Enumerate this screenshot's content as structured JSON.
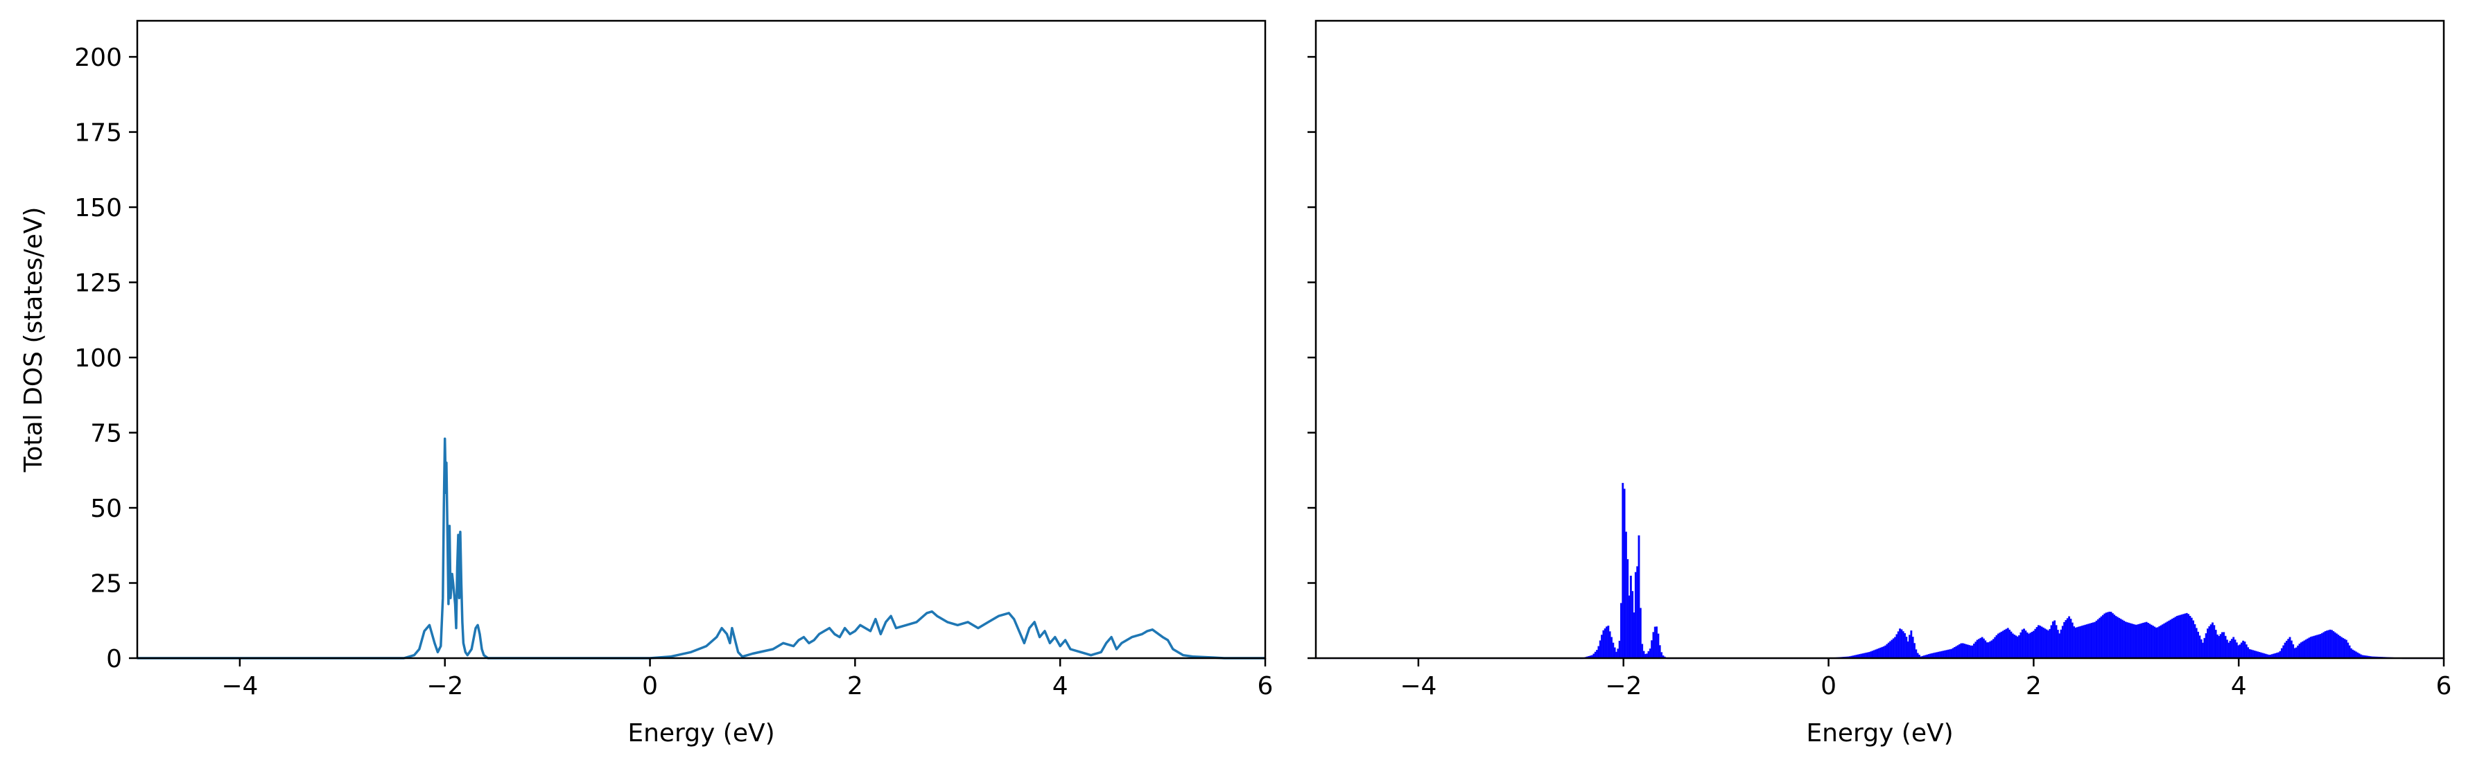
{
  "chart_data": [
    {
      "type": "line",
      "panel": "left",
      "xlabel": "Energy (eV)",
      "ylabel": "Total DOS (states/eV)",
      "xlim": [
        -5,
        6
      ],
      "ylim": [
        0,
        212
      ],
      "xticks": [
        -4,
        -2,
        0,
        2,
        4,
        6
      ],
      "xtick_labels": [
        "−4",
        "−2",
        "0",
        "2",
        "4",
        "6"
      ],
      "yticks": [
        0,
        25,
        50,
        75,
        100,
        125,
        150,
        175,
        200
      ],
      "ytick_labels": [
        "0",
        "25",
        "50",
        "75",
        "100",
        "125",
        "150",
        "175",
        "200"
      ],
      "grid": false,
      "color": "#1f77b4",
      "series": [
        {
          "x": [
            -5.0,
            -2.4,
            -2.3,
            -2.25,
            -2.2,
            -2.15,
            -2.1,
            -2.07,
            -2.04,
            -2.02,
            -2.01,
            -2.0,
            -1.99,
            -1.985,
            -1.975,
            -1.965,
            -1.955,
            -1.945,
            -1.93,
            -1.92,
            -1.9,
            -1.89,
            -1.88,
            -1.87,
            -1.86,
            -1.85,
            -1.84,
            -1.83,
            -1.82,
            -1.8,
            -1.78,
            -1.74,
            -1.7,
            -1.68,
            -1.66,
            -1.64,
            -1.62,
            -1.58,
            -1.5,
            0.0,
            0.2,
            0.4,
            0.55,
            0.65,
            0.7,
            0.75,
            0.78,
            0.8,
            0.83,
            0.86,
            0.9,
            1.0,
            1.2,
            1.3,
            1.4,
            1.45,
            1.5,
            1.55,
            1.6,
            1.65,
            1.7,
            1.75,
            1.8,
            1.85,
            1.9,
            1.95,
            2.0,
            2.05,
            2.1,
            2.15,
            2.2,
            2.25,
            2.3,
            2.35,
            2.4,
            2.5,
            2.6,
            2.7,
            2.75,
            2.8,
            2.9,
            3.0,
            3.1,
            3.2,
            3.3,
            3.4,
            3.5,
            3.55,
            3.6,
            3.65,
            3.7,
            3.75,
            3.8,
            3.85,
            3.9,
            3.95,
            4.0,
            4.05,
            4.1,
            4.2,
            4.3,
            4.4,
            4.45,
            4.5,
            4.55,
            4.6,
            4.7,
            4.8,
            4.85,
            4.9,
            5.0,
            5.05,
            5.1,
            5.2,
            5.3,
            5.5,
            5.6,
            6.0
          ],
          "y": [
            0.0,
            0.0,
            1.0,
            3.0,
            9.0,
            11.0,
            5.0,
            2.0,
            4.0,
            20.0,
            50.0,
            73.0,
            55.0,
            65.0,
            42.0,
            18.0,
            44.0,
            20.0,
            28.0,
            25.0,
            18.0,
            10.0,
            30.0,
            41.0,
            20.0,
            42.0,
            25.0,
            12.0,
            5.0,
            2.0,
            1.0,
            3.0,
            10.0,
            11.0,
            8.0,
            3.0,
            1.0,
            0.0,
            0.0,
            0.0,
            0.5,
            2.0,
            4.0,
            7.0,
            10.0,
            8.0,
            5.0,
            10.0,
            6.0,
            2.0,
            0.5,
            1.5,
            3.0,
            5.0,
            4.0,
            6.0,
            7.0,
            5.0,
            6.0,
            8.0,
            9.0,
            10.0,
            8.0,
            7.0,
            10.0,
            8.0,
            9.0,
            11.0,
            10.0,
            9.0,
            13.0,
            8.0,
            12.0,
            14.0,
            10.0,
            11.0,
            12.0,
            15.0,
            15.5,
            14.0,
            12.0,
            11.0,
            12.0,
            10.0,
            12.0,
            14.0,
            15.0,
            13.0,
            9.0,
            5.0,
            10.0,
            12.0,
            7.0,
            9.0,
            5.0,
            7.0,
            4.0,
            6.0,
            3.0,
            2.0,
            1.0,
            2.0,
            5.0,
            7.0,
            3.0,
            5.0,
            7.0,
            8.0,
            9.0,
            9.5,
            7.0,
            6.0,
            3.0,
            1.0,
            0.5,
            0.2,
            0.0,
            0.0
          ]
        }
      ]
    },
    {
      "type": "area",
      "panel": "right",
      "xlabel": "Energy (eV)",
      "xlim": [
        -5,
        6
      ],
      "ylim": [
        0,
        212
      ],
      "xticks": [
        -4,
        -2,
        0,
        2,
        4,
        6
      ],
      "xtick_labels": [
        "−4",
        "−2",
        "0",
        "2",
        "4",
        "6"
      ],
      "yticks": [
        0,
        25,
        50,
        75,
        100,
        125,
        150,
        175,
        200
      ],
      "ytick_labels_visible": false,
      "sharey": true,
      "grid": false,
      "color": "#0000ff",
      "note_data_same_as": "left"
    }
  ]
}
